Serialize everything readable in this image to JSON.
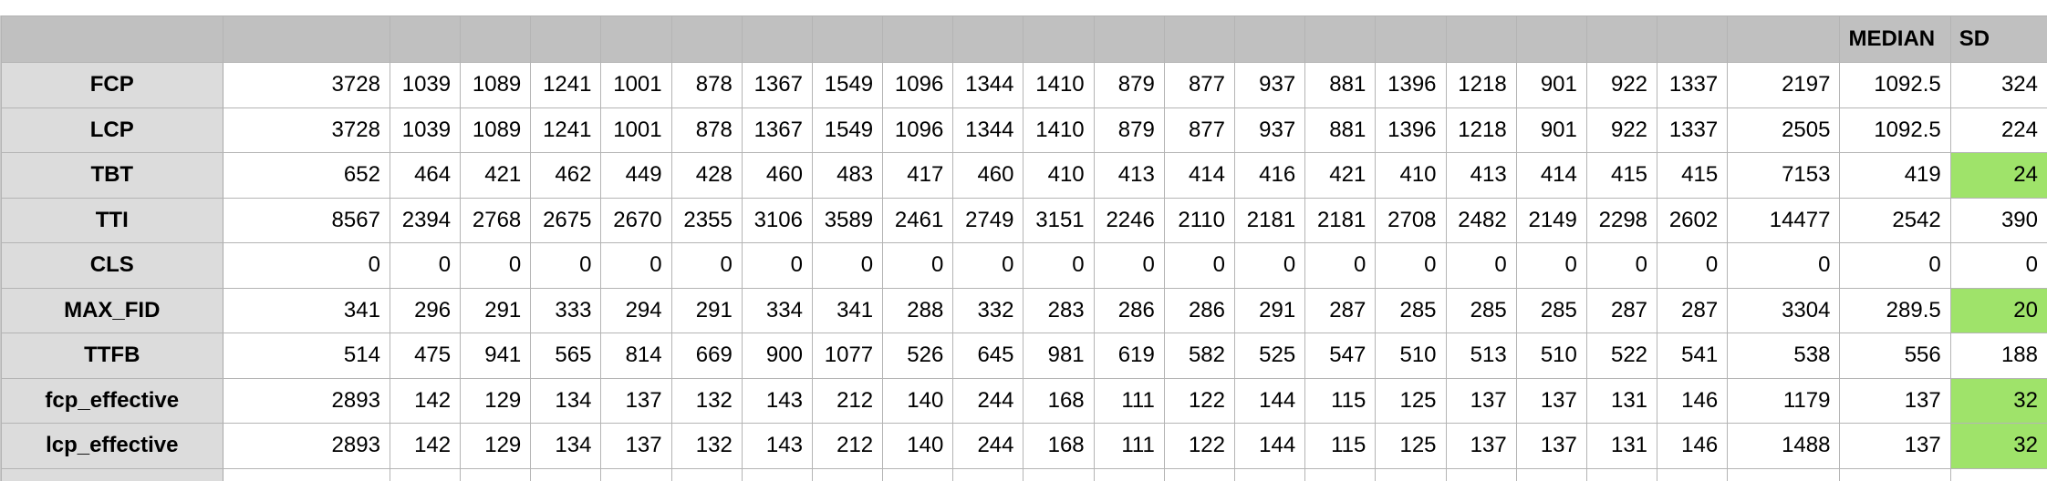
{
  "header": [
    "",
    "",
    "",
    "",
    "",
    "",
    "",
    "",
    "",
    "",
    "",
    "",
    "",
    "",
    "",
    "",
    "",
    "",
    "",
    "",
    "",
    "MEDIAN",
    "SD"
  ],
  "rows": [
    {
      "label": "FCP",
      "values": [
        "3728",
        "1039",
        "1089",
        "1241",
        "1001",
        "878",
        "1367",
        "1549",
        "1096",
        "1344",
        "1410",
        "879",
        "877",
        "937",
        "881",
        "1396",
        "1218",
        "901",
        "922",
        "1337",
        "2197",
        "1092.5",
        "324"
      ],
      "sd_highlight": false
    },
    {
      "label": "LCP",
      "values": [
        "3728",
        "1039",
        "1089",
        "1241",
        "1001",
        "878",
        "1367",
        "1549",
        "1096",
        "1344",
        "1410",
        "879",
        "877",
        "937",
        "881",
        "1396",
        "1218",
        "901",
        "922",
        "1337",
        "2505",
        "1092.5",
        "224"
      ],
      "sd_highlight": false
    },
    {
      "label": "TBT",
      "values": [
        "652",
        "464",
        "421",
        "462",
        "449",
        "428",
        "460",
        "483",
        "417",
        "460",
        "410",
        "413",
        "414",
        "416",
        "421",
        "410",
        "413",
        "414",
        "415",
        "415",
        "7153",
        "419",
        "24"
      ],
      "sd_highlight": true
    },
    {
      "label": "TTI",
      "values": [
        "8567",
        "2394",
        "2768",
        "2675",
        "2670",
        "2355",
        "3106",
        "3589",
        "2461",
        "2749",
        "3151",
        "2246",
        "2110",
        "2181",
        "2181",
        "2708",
        "2482",
        "2149",
        "2298",
        "2602",
        "14477",
        "2542",
        "390"
      ],
      "sd_highlight": false
    },
    {
      "label": "CLS",
      "values": [
        "0",
        "0",
        "0",
        "0",
        "0",
        "0",
        "0",
        "0",
        "0",
        "0",
        "0",
        "0",
        "0",
        "0",
        "0",
        "0",
        "0",
        "0",
        "0",
        "0",
        "0",
        "0",
        "0"
      ],
      "sd_highlight": false
    },
    {
      "label": "MAX_FID",
      "values": [
        "341",
        "296",
        "291",
        "333",
        "294",
        "291",
        "334",
        "341",
        "288",
        "332",
        "283",
        "286",
        "286",
        "291",
        "287",
        "285",
        "285",
        "285",
        "287",
        "287",
        "3304",
        "289.5",
        "20"
      ],
      "sd_highlight": true
    },
    {
      "label": "TTFB",
      "values": [
        "514",
        "475",
        "941",
        "565",
        "814",
        "669",
        "900",
        "1077",
        "526",
        "645",
        "981",
        "619",
        "582",
        "525",
        "547",
        "510",
        "513",
        "510",
        "522",
        "541",
        "538",
        "556",
        "188"
      ],
      "sd_highlight": false
    },
    {
      "label": "fcp_effective",
      "values": [
        "2893",
        "142",
        "129",
        "134",
        "137",
        "132",
        "143",
        "212",
        "140",
        "244",
        "168",
        "111",
        "122",
        "144",
        "115",
        "125",
        "137",
        "137",
        "131",
        "146",
        "1179",
        "137",
        "32"
      ],
      "sd_highlight": true
    },
    {
      "label": "lcp_effective",
      "values": [
        "2893",
        "142",
        "129",
        "134",
        "137",
        "132",
        "143",
        "212",
        "140",
        "244",
        "168",
        "111",
        "122",
        "144",
        "115",
        "125",
        "137",
        "137",
        "131",
        "146",
        "1488",
        "137",
        "32"
      ],
      "sd_highlight": true
    }
  ],
  "colors": {
    "header_bg": "#c0c0c0",
    "rowhead_bg": "#dcdcdc",
    "highlight": "#9fe36a",
    "grid_line": "#b4b4b4"
  }
}
